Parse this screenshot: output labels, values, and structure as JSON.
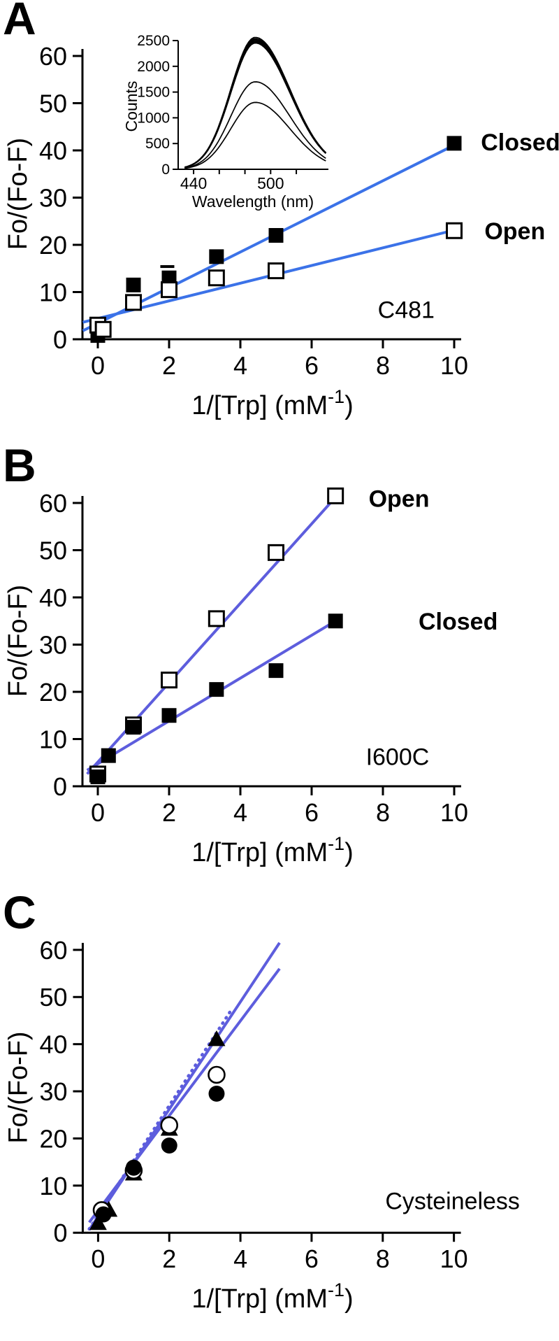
{
  "figure_title": "",
  "panel_letters": [
    "A",
    "B",
    "C"
  ],
  "colors": {
    "panel_a_line": "#3b72e8",
    "panel_b_line": "#5d5ddd",
    "panel_c_line": "#5d5ddd",
    "axis": "#000000",
    "background": "#ffffff"
  },
  "chart_data": [
    {
      "panel": "A",
      "type": "scatter",
      "annotation": "C481",
      "annotation_pos": {
        "x": 9.45,
        "y": 4.5
      },
      "xlabel": {
        "prefix": "1/[Trp] (mM",
        "sup": "-1",
        "suffix": ")"
      },
      "ylabel": "Fo/(Fo-F)",
      "xlim": [
        0,
        10
      ],
      "xticks": [
        0,
        2,
        4,
        6,
        8,
        10
      ],
      "ylim": [
        0,
        60
      ],
      "yticks": [
        0,
        10,
        20,
        30,
        40,
        50,
        60
      ],
      "grid": false,
      "line_color": "#3b72e8",
      "series": [
        {
          "name": "Closed",
          "marker": "square-filled",
          "label_pos": {
            "x": 10.75,
            "y": 41.8
          },
          "points": [
            [
              0,
              0.8
            ],
            [
              1,
              11.5
            ],
            [
              2,
              13
            ],
            [
              3.33,
              17.5
            ],
            [
              5,
              22
            ],
            [
              10,
              41.5
            ]
          ]
        },
        {
          "name": "Open",
          "marker": "square-open",
          "label_pos": {
            "x": 10.85,
            "y": 23
          },
          "points": [
            [
              0,
              3
            ],
            [
              0.15,
              2.1
            ],
            [
              1,
              7.8
            ],
            [
              2,
              10.5
            ],
            [
              3.33,
              13
            ],
            [
              5,
              14.5
            ],
            [
              10,
              23
            ]
          ]
        },
        {
          "name": "",
          "marker": "dash",
          "points": [
            [
              1.95,
              15.4
            ]
          ]
        }
      ],
      "fit_lines": [
        {
          "x1": -0.42,
          "y1": 1.8,
          "x2": 10.05,
          "y2": 41.3,
          "style": "solid"
        },
        {
          "x1": -0.42,
          "y1": 3.6,
          "x2": 10.05,
          "y2": 23.2,
          "style": "solid"
        }
      ],
      "inset": {
        "type": "line",
        "ylabel": "Counts",
        "xlabel": "Wavelength (nm)",
        "xlim": [
          428,
          545
        ],
        "xticks": [
          440,
          460,
          480,
          500,
          520
        ],
        "xtick_labels": [
          "440",
          "500"
        ],
        "ylim": [
          0,
          2500
        ],
        "yticks": [
          0,
          500,
          1000,
          1500,
          2000,
          2500
        ],
        "peak_wavelength": 488,
        "curve_peaks": [
          2560,
          2530,
          2505,
          2480,
          2455,
          1700,
          1300
        ]
      }
    },
    {
      "panel": "B",
      "type": "scatter",
      "annotation": "I600C",
      "annotation_pos": {
        "x": 9.3,
        "y": 4.5
      },
      "xlabel": {
        "prefix": "1/[Trp] (mM",
        "sup": "-1",
        "suffix": ")"
      },
      "ylabel": "Fo/(Fo-F)",
      "xlim": [
        0,
        10
      ],
      "xticks": [
        0,
        2,
        4,
        6,
        8,
        10
      ],
      "ylim": [
        0,
        60
      ],
      "yticks": [
        0,
        10,
        20,
        30,
        40,
        50,
        60
      ],
      "grid": false,
      "line_color": "#5d5ddd",
      "series": [
        {
          "name": "Open",
          "marker": "square-open",
          "label_pos": {
            "x": 7.6,
            "y": 61
          },
          "points": [
            [
              0,
              2.6
            ],
            [
              1,
              13
            ],
            [
              2,
              22.5
            ],
            [
              3.33,
              35.5
            ],
            [
              5,
              49.5
            ],
            [
              6.67,
              61.5
            ]
          ]
        },
        {
          "name": "Closed",
          "marker": "square-filled",
          "label_pos": {
            "x": 9.0,
            "y": 35
          },
          "points": [
            [
              0,
              2
            ],
            [
              0.3,
              6.5
            ],
            [
              1,
              12.5
            ],
            [
              2,
              15
            ],
            [
              3.33,
              20.5
            ],
            [
              5,
              24.5
            ],
            [
              6.67,
              35
            ]
          ]
        }
      ],
      "fit_lines": [
        {
          "x1": -0.3,
          "y1": 2.6,
          "x2": 6.8,
          "y2": 62.3,
          "style": "solid"
        },
        {
          "x1": -0.3,
          "y1": 3.4,
          "x2": 6.8,
          "y2": 35.6,
          "style": "solid"
        }
      ]
    },
    {
      "panel": "C",
      "type": "scatter",
      "annotation": "Cysteineless",
      "annotation_pos": {
        "x": 11.85,
        "y": 5
      },
      "xlabel": {
        "prefix": "1/[Trp] (mM",
        "sup": "-1",
        "suffix": ")"
      },
      "ylabel": "Fo/(Fo-F)",
      "xlim": [
        0,
        10
      ],
      "xticks": [
        0,
        2,
        4,
        6,
        8,
        10
      ],
      "ylim": [
        0,
        60
      ],
      "yticks": [
        0,
        10,
        20,
        30,
        40,
        50,
        60
      ],
      "grid": false,
      "line_color": "#5d5ddd",
      "series": [
        {
          "name": "",
          "marker": "triangle-filled",
          "points": [
            [
              0,
              2
            ],
            [
              0.3,
              4.8
            ],
            [
              1,
              12.5
            ],
            [
              2,
              22
            ],
            [
              3.33,
              41
            ]
          ]
        },
        {
          "name": "",
          "marker": "circle-open",
          "points": [
            [
              0.1,
              4.8
            ],
            [
              1,
              13.2
            ],
            [
              2,
              22.8
            ],
            [
              3.33,
              33.5
            ]
          ]
        },
        {
          "name": "",
          "marker": "circle-filled",
          "points": [
            [
              0.15,
              3.9
            ],
            [
              1,
              13.8
            ],
            [
              2,
              18.5
            ],
            [
              3.33,
              29.5
            ]
          ]
        }
      ],
      "fit_lines": [
        {
          "x1": -0.25,
          "y1": 0.6,
          "x2": 5.1,
          "y2": 61.5,
          "style": "solid"
        },
        {
          "x1": -0.25,
          "y1": 2.2,
          "x2": 5.1,
          "y2": 56.0,
          "style": "solid"
        },
        {
          "x1": -0.25,
          "y1": 0.8,
          "x2": 3.72,
          "y2": 47.0,
          "style": "dotted"
        }
      ]
    }
  ]
}
